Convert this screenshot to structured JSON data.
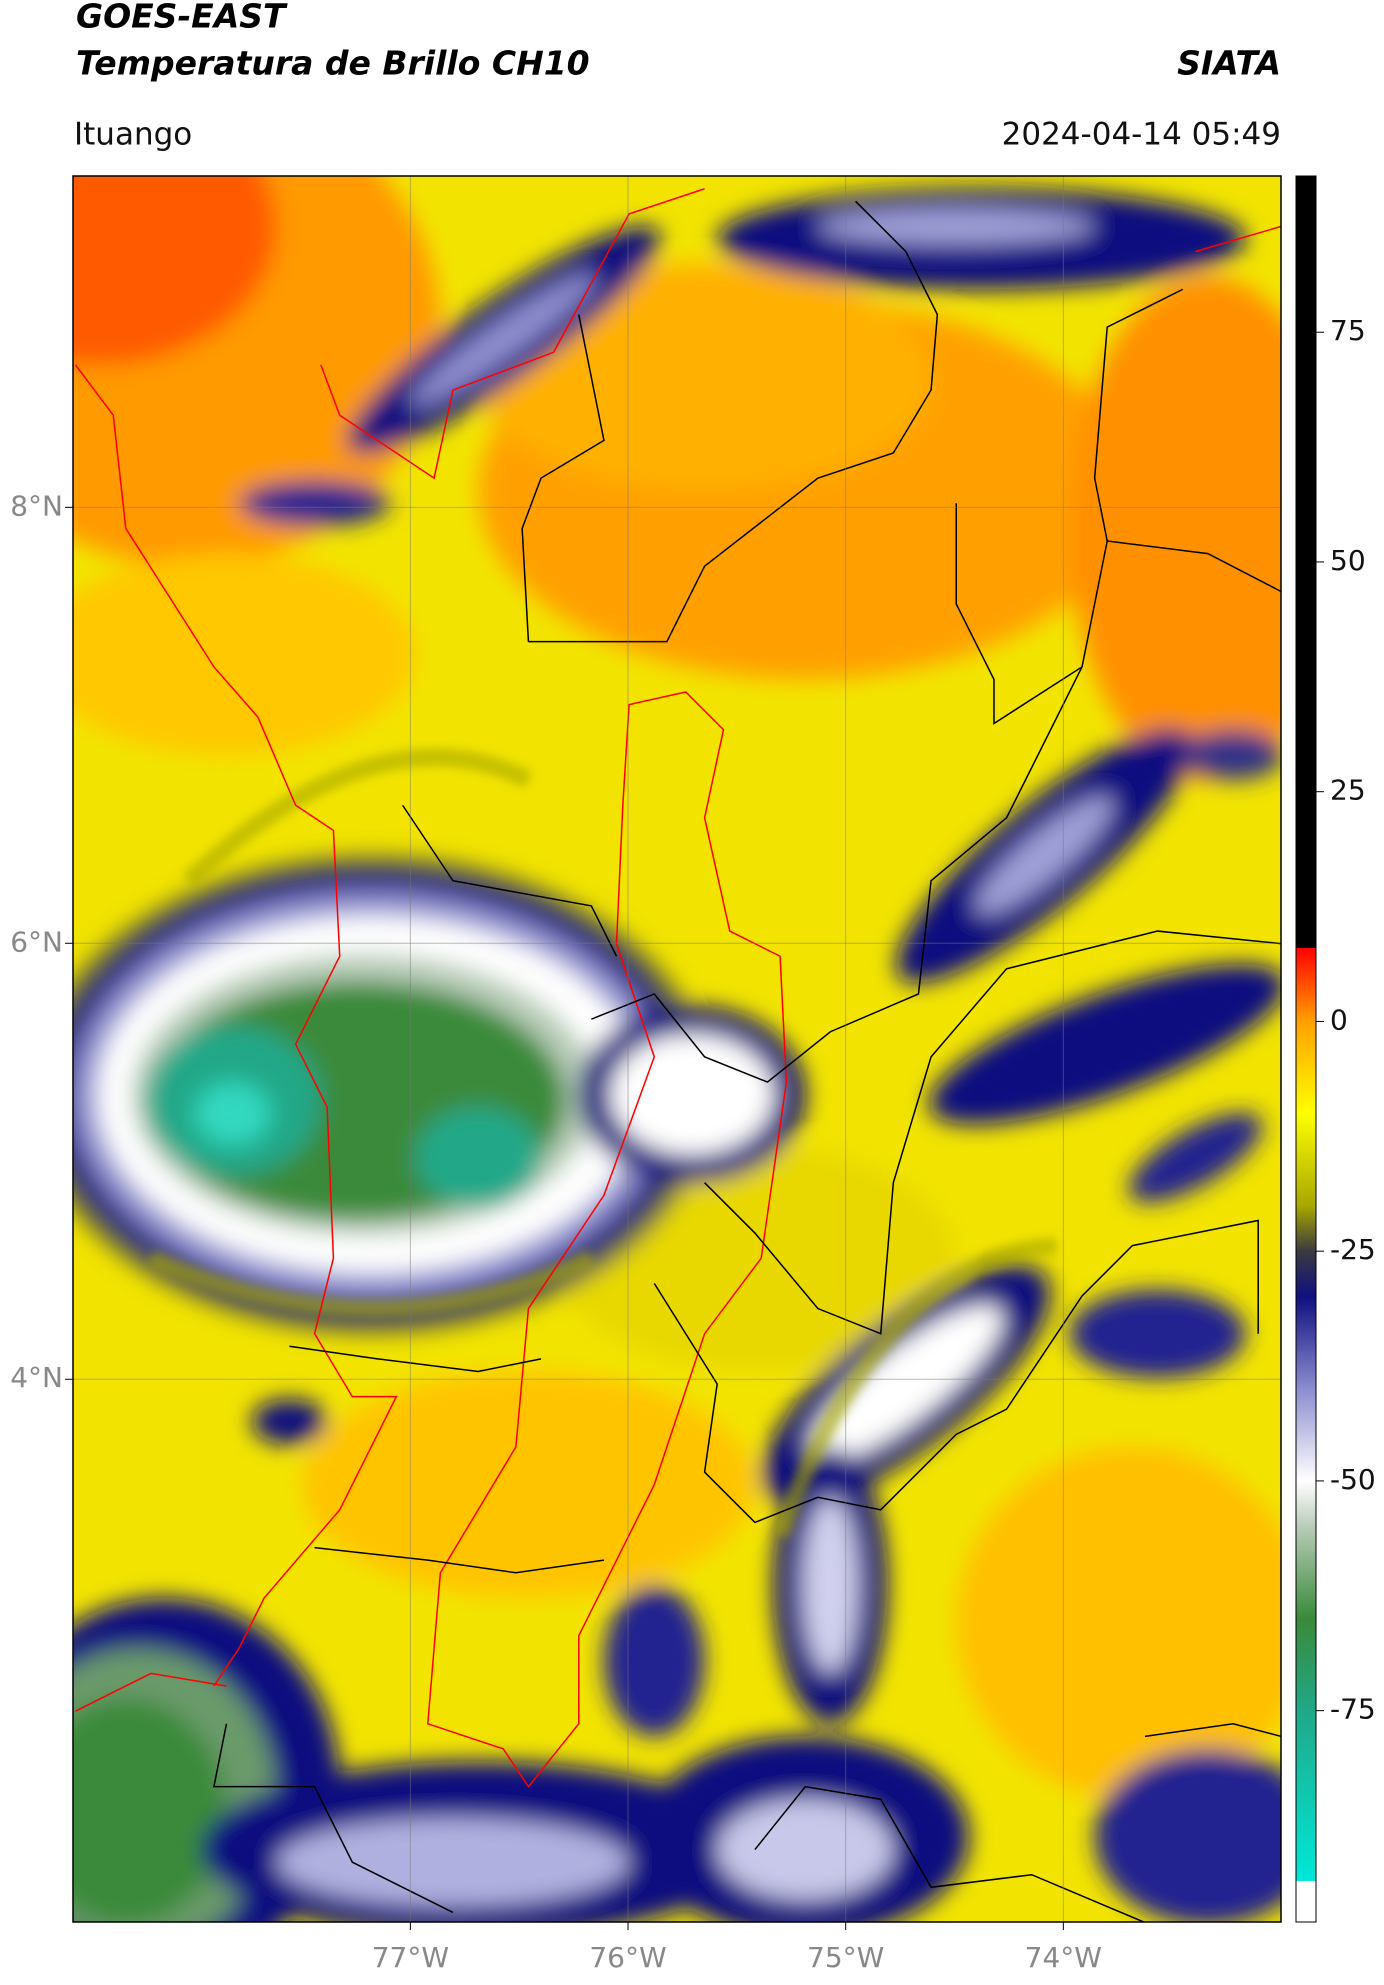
{
  "header": {
    "title": "GOES-EAST",
    "subtitle": "Temperatura de Brillo CH10",
    "source": "SIATA",
    "location": "Ituango",
    "datetime": "2024-04-14 05:49"
  },
  "map": {
    "lonlim": [
      -78.55,
      -73.0
    ],
    "latlim": [
      1.51,
      9.52
    ],
    "grid": true,
    "lonticks": [
      {
        "value": -77,
        "label": "77°W"
      },
      {
        "value": -76,
        "label": "76°W"
      },
      {
        "value": -75,
        "label": "75°W"
      },
      {
        "value": -74,
        "label": "74°W"
      }
    ],
    "latticks": [
      {
        "value": 8,
        "label": "8°N"
      },
      {
        "value": 6,
        "label": "6°N"
      },
      {
        "value": 4,
        "label": "4°N"
      }
    ]
  },
  "colorbar": {
    "lim": [
      -98,
      92
    ],
    "ticks": [
      75,
      50,
      25,
      0,
      -25,
      -50,
      -75
    ],
    "stops": [
      {
        "value": -98,
        "color": "#ffffff"
      },
      {
        "value": -93.6,
        "color": "#ffffff"
      },
      {
        "value": -93.5,
        "color": "#00e8d8"
      },
      {
        "value": -75,
        "color": "#20a888"
      },
      {
        "value": -65,
        "color": "#3a8a3a"
      },
      {
        "value": -55,
        "color": "#b8ccb8"
      },
      {
        "value": -50,
        "color": "#ffffff"
      },
      {
        "value": -40,
        "color": "#8c8cd0"
      },
      {
        "value": -30,
        "color": "#101080"
      },
      {
        "value": -25,
        "color": "#3a3a40"
      },
      {
        "value": -20,
        "color": "#a8a800"
      },
      {
        "value": -10,
        "color": "#ffff00"
      },
      {
        "value": 0,
        "color": "#ffa000"
      },
      {
        "value": 8,
        "color": "#ff0000"
      },
      {
        "value": 8.01,
        "color": "#000000"
      },
      {
        "value": 92,
        "color": "#000000"
      }
    ]
  }
}
